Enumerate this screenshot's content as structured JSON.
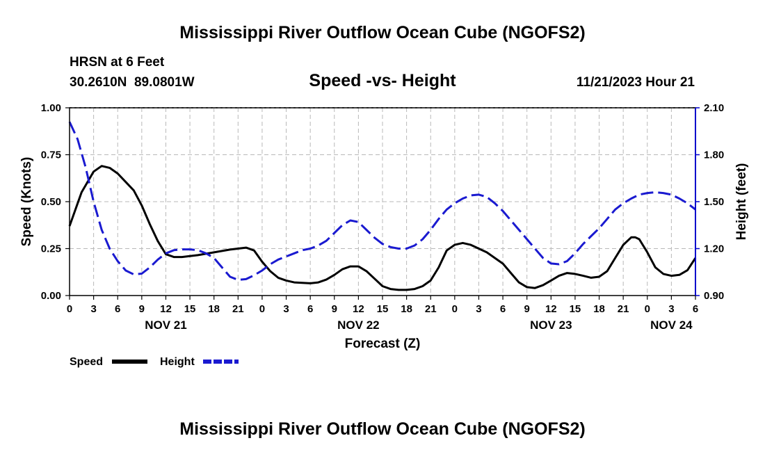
{
  "page": {
    "title": "Mississippi River Outflow Ocean Cube (NGOFS2)",
    "footer_title": "Mississippi River Outflow Ocean Cube (NGOFS2)"
  },
  "station": {
    "name": "HRSN at 6 Feet",
    "coords": "30.2610N  89.0801W",
    "datetime": "11/21/2023 Hour 21"
  },
  "chart_data": {
    "type": "line",
    "title": "Speed -vs- Height",
    "xlabel": "Forecast (Z)",
    "ylabel_left": "Speed (Knots)",
    "ylabel_right": "Height (feet)",
    "x_unit": "forecast hours from 11/21 00Z",
    "xlim": [
      0,
      78
    ],
    "ylim_left": [
      0,
      1.0
    ],
    "ylim_right": [
      0.9,
      2.1
    ],
    "x_ticks": [
      0,
      3,
      6,
      9,
      12,
      15,
      18,
      21,
      24,
      27,
      30,
      33,
      36,
      39,
      42,
      45,
      48,
      51,
      54,
      57,
      60,
      63,
      66,
      69,
      72,
      75,
      78
    ],
    "x_tick_labels": [
      "0",
      "3",
      "6",
      "9",
      "12",
      "15",
      "18",
      "21",
      "0",
      "3",
      "6",
      "9",
      "12",
      "15",
      "18",
      "21",
      "0",
      "3",
      "6",
      "9",
      "12",
      "15",
      "18",
      "21",
      "0",
      "3",
      "6"
    ],
    "day_labels": [
      {
        "label": "NOV 21",
        "x": 12
      },
      {
        "label": "NOV 22",
        "x": 36
      },
      {
        "label": "NOV 23",
        "x": 60
      },
      {
        "label": "NOV 24",
        "x": 75
      }
    ],
    "y_ticks_left": [
      "0.00",
      "0.25",
      "0.50",
      "0.75",
      "1.00"
    ],
    "y_ticks_right": [
      "0.90",
      "1.20",
      "1.50",
      "1.80",
      "2.10"
    ],
    "grid": true,
    "series": [
      {
        "name": "Speed",
        "axis": "left",
        "color": "#000000",
        "style": "solid",
        "points": [
          [
            0,
            0.37
          ],
          [
            1.5,
            0.55
          ],
          [
            3,
            0.66
          ],
          [
            4,
            0.69
          ],
          [
            5,
            0.68
          ],
          [
            6,
            0.65
          ],
          [
            8,
            0.56
          ],
          [
            9,
            0.48
          ],
          [
            10,
            0.38
          ],
          [
            11,
            0.29
          ],
          [
            12,
            0.22
          ],
          [
            13,
            0.205
          ],
          [
            14,
            0.205
          ],
          [
            16,
            0.215
          ],
          [
            18,
            0.23
          ],
          [
            20,
            0.245
          ],
          [
            22,
            0.255
          ],
          [
            23,
            0.24
          ],
          [
            24,
            0.18
          ],
          [
            25,
            0.13
          ],
          [
            26,
            0.095
          ],
          [
            27,
            0.08
          ],
          [
            28,
            0.07
          ],
          [
            30,
            0.065
          ],
          [
            31,
            0.07
          ],
          [
            32,
            0.085
          ],
          [
            33,
            0.11
          ],
          [
            34,
            0.14
          ],
          [
            35,
            0.155
          ],
          [
            36,
            0.155
          ],
          [
            37,
            0.13
          ],
          [
            38,
            0.09
          ],
          [
            39,
            0.05
          ],
          [
            40,
            0.035
          ],
          [
            41,
            0.03
          ],
          [
            42,
            0.03
          ],
          [
            43,
            0.035
          ],
          [
            44,
            0.05
          ],
          [
            45,
            0.08
          ],
          [
            46,
            0.15
          ],
          [
            47,
            0.24
          ],
          [
            48,
            0.27
          ],
          [
            49,
            0.28
          ],
          [
            50,
            0.27
          ],
          [
            52,
            0.23
          ],
          [
            54,
            0.17
          ],
          [
            55,
            0.12
          ],
          [
            56,
            0.07
          ],
          [
            57,
            0.045
          ],
          [
            58,
            0.04
          ],
          [
            59,
            0.055
          ],
          [
            60,
            0.08
          ],
          [
            61,
            0.105
          ],
          [
            62,
            0.12
          ],
          [
            63,
            0.115
          ],
          [
            64,
            0.105
          ],
          [
            65,
            0.095
          ],
          [
            66,
            0.1
          ],
          [
            67,
            0.13
          ],
          [
            68,
            0.2
          ],
          [
            69,
            0.27
          ],
          [
            70,
            0.31
          ],
          [
            70.5,
            0.31
          ],
          [
            71,
            0.3
          ],
          [
            72,
            0.23
          ],
          [
            73,
            0.15
          ],
          [
            74,
            0.115
          ],
          [
            75,
            0.105
          ],
          [
            76,
            0.11
          ],
          [
            77,
            0.135
          ],
          [
            78,
            0.2
          ]
        ]
      },
      {
        "name": "Height",
        "axis": "right",
        "color": "#1a1ad0",
        "style": "dashed",
        "points": [
          [
            0,
            2.01
          ],
          [
            1,
            1.9
          ],
          [
            2,
            1.72
          ],
          [
            3,
            1.5
          ],
          [
            4,
            1.32
          ],
          [
            5,
            1.2
          ],
          [
            6,
            1.12
          ],
          [
            7,
            1.06
          ],
          [
            8,
            1.035
          ],
          [
            9,
            1.04
          ],
          [
            10,
            1.08
          ],
          [
            11,
            1.13
          ],
          [
            12,
            1.17
          ],
          [
            13,
            1.19
          ],
          [
            14,
            1.195
          ],
          [
            15,
            1.195
          ],
          [
            16,
            1.19
          ],
          [
            17,
            1.17
          ],
          [
            18,
            1.14
          ],
          [
            19,
            1.08
          ],
          [
            20,
            1.02
          ],
          [
            21,
            1.0
          ],
          [
            22,
            1.005
          ],
          [
            23,
            1.03
          ],
          [
            24,
            1.06
          ],
          [
            25,
            1.1
          ],
          [
            26,
            1.13
          ],
          [
            27,
            1.15
          ],
          [
            28,
            1.17
          ],
          [
            29,
            1.19
          ],
          [
            30,
            1.2
          ],
          [
            31,
            1.22
          ],
          [
            32,
            1.25
          ],
          [
            33,
            1.3
          ],
          [
            34,
            1.35
          ],
          [
            35,
            1.38
          ],
          [
            36,
            1.37
          ],
          [
            37,
            1.32
          ],
          [
            38,
            1.27
          ],
          [
            39,
            1.23
          ],
          [
            40,
            1.21
          ],
          [
            41,
            1.2
          ],
          [
            42,
            1.2
          ],
          [
            43,
            1.22
          ],
          [
            44,
            1.26
          ],
          [
            45,
            1.32
          ],
          [
            46,
            1.39
          ],
          [
            47,
            1.45
          ],
          [
            48,
            1.49
          ],
          [
            49,
            1.52
          ],
          [
            50,
            1.54
          ],
          [
            51,
            1.545
          ],
          [
            52,
            1.53
          ],
          [
            53,
            1.49
          ],
          [
            54,
            1.44
          ],
          [
            55,
            1.38
          ],
          [
            56,
            1.32
          ],
          [
            57,
            1.26
          ],
          [
            58,
            1.2
          ],
          [
            59,
            1.14
          ],
          [
            60,
            1.105
          ],
          [
            61,
            1.1
          ],
          [
            62,
            1.12
          ],
          [
            63,
            1.17
          ],
          [
            64,
            1.23
          ],
          [
            65,
            1.28
          ],
          [
            66,
            1.33
          ],
          [
            67,
            1.39
          ],
          [
            68,
            1.45
          ],
          [
            69,
            1.49
          ],
          [
            70,
            1.52
          ],
          [
            71,
            1.545
          ],
          [
            72,
            1.555
          ],
          [
            73,
            1.56
          ],
          [
            74,
            1.555
          ],
          [
            75,
            1.545
          ],
          [
            76,
            1.52
          ],
          [
            77,
            1.49
          ],
          [
            78,
            1.45
          ]
        ]
      }
    ],
    "legend": [
      {
        "label": "Speed",
        "color": "#000000",
        "style": "solid"
      },
      {
        "label": "Height",
        "color": "#1a1ad0",
        "style": "dashed"
      }
    ]
  }
}
